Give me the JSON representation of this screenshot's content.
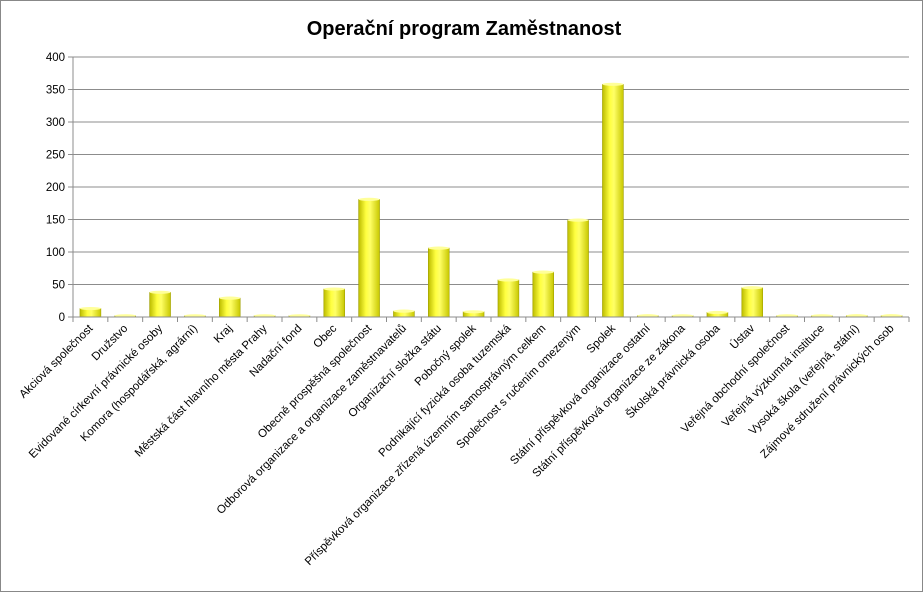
{
  "chart_data": {
    "type": "bar",
    "title": "Operační program Zaměstnanost",
    "xlabel": "",
    "ylabel": "",
    "ylim": [
      0,
      400
    ],
    "yticks": [
      0,
      50,
      100,
      150,
      200,
      250,
      300,
      350,
      400
    ],
    "grid": true,
    "legend": "none",
    "bar_color": "#f2f200",
    "categories": [
      "Akciová společnost",
      "Družstvo",
      "Evidované církevní právnické osoby",
      "Komora (hospodářská, agrární)",
      "Kraj",
      "Městská část hlavního města Prahy",
      "Nadační fond",
      "Obec",
      "Obecně prospěšná společnost",
      "Odborová organizace a organizace zaměstnavatelů",
      "Organizační složka státu",
      "Pobočný spolek",
      "Podnikající fyzická osoba tuzemská",
      "Příspěvková organizace zřízená územním samosprávným celkem",
      "Společnost s ručením omezeným",
      "Spolek",
      "Státní příspěvková organizace ostatní",
      "Státní příspěvková organizace ze zákona",
      "Školská právnická osoba",
      "Ústav",
      "Veřejná obchodní společnost",
      "Veřejná výzkumná instituce",
      "Vysoká škola (veřejná, státní)",
      "Zájmové sdružení právnických osob"
    ],
    "values": [
      13,
      0,
      38,
      0,
      29,
      0,
      0,
      43,
      181,
      9,
      106,
      8,
      57,
      69,
      149,
      358,
      2,
      0,
      7,
      45,
      0,
      0,
      2,
      2
    ]
  }
}
